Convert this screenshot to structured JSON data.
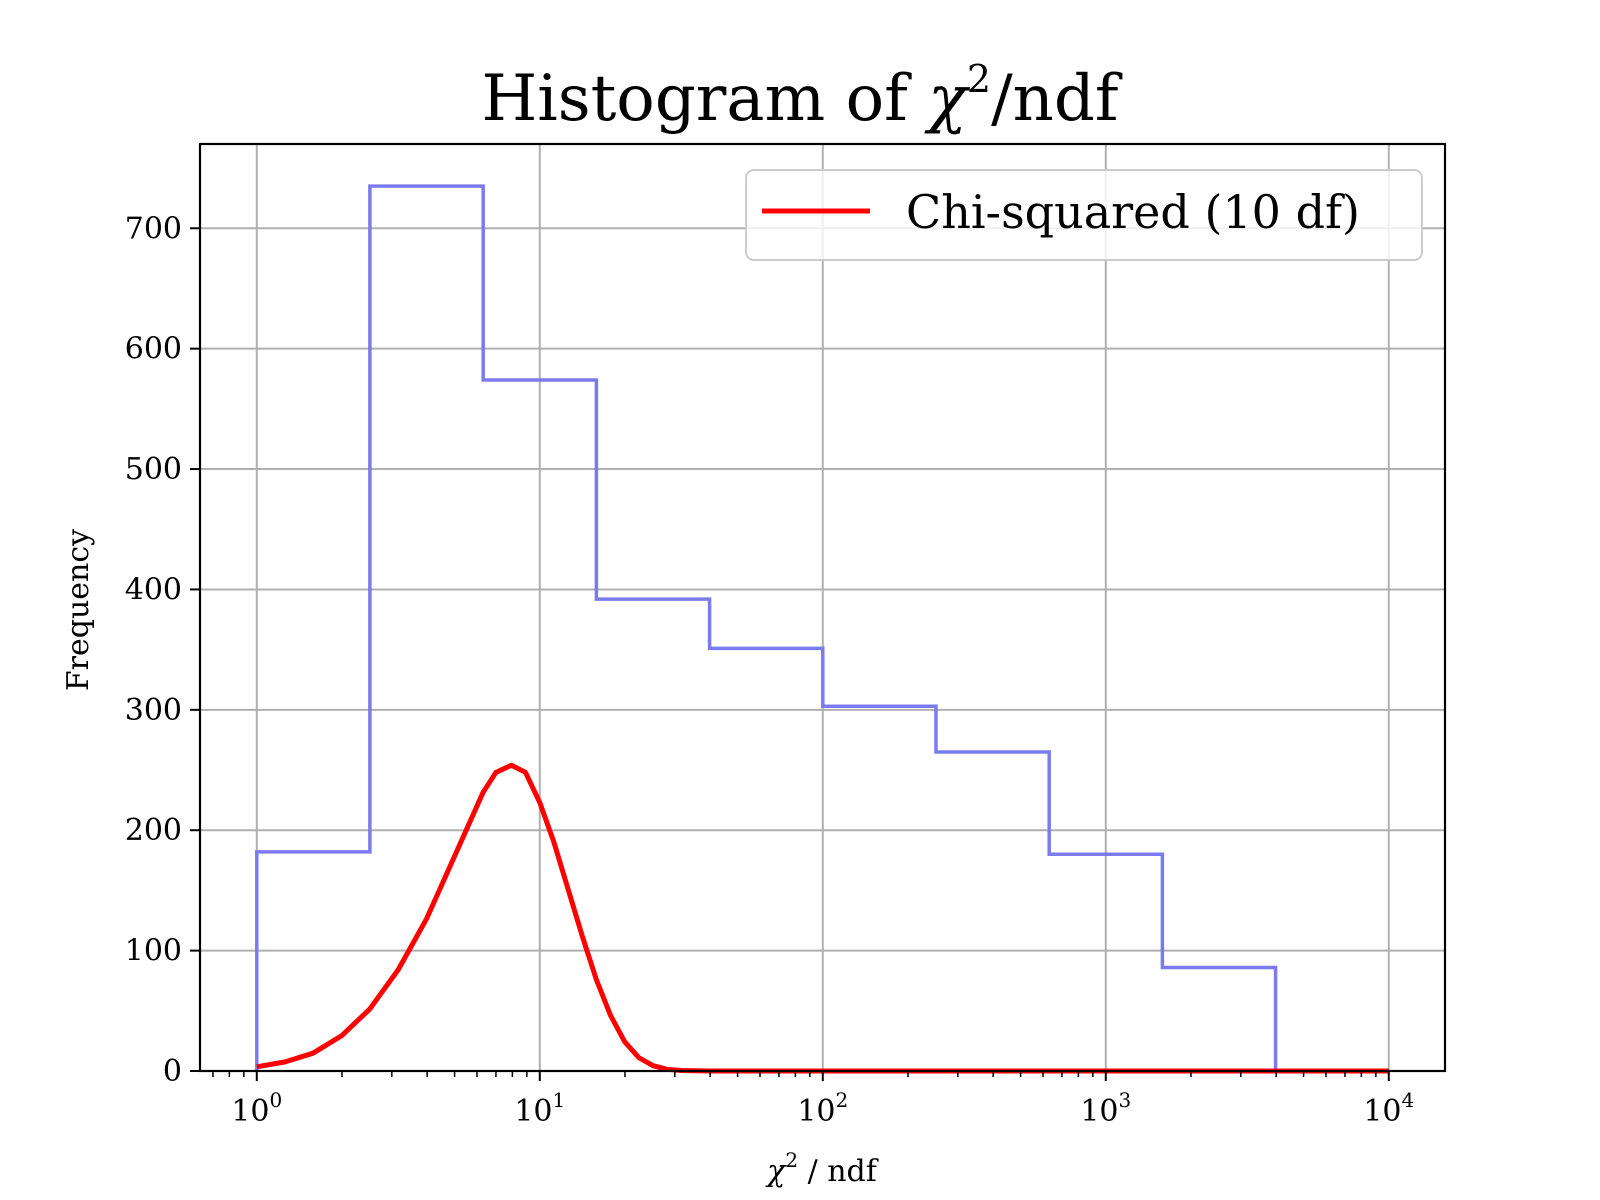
{
  "chart_data": {
    "type": "bar",
    "title_main": "Histogram of ",
    "title_symbol": "χ",
    "title_power": "2",
    "title_tail": "/ndf",
    "xlabel_symbol": "χ",
    "xlabel_power": "2",
    "xlabel_tail": " / ndf",
    "ylabel": "Frequency",
    "x_scale": "log",
    "xlim": [
      0.63,
      15800
    ],
    "ylim": [
      0,
      770
    ],
    "grid": true,
    "legend_position": "top-right",
    "x_ticks": [
      {
        "value": 1,
        "base": "10",
        "exp": "0"
      },
      {
        "value": 10,
        "base": "10",
        "exp": "1"
      },
      {
        "value": 100,
        "base": "10",
        "exp": "2"
      },
      {
        "value": 1000,
        "base": "10",
        "exp": "3"
      },
      {
        "value": 10000,
        "base": "10",
        "exp": "4"
      }
    ],
    "y_ticks": [
      {
        "value": 0,
        "label": "0"
      },
      {
        "value": 100,
        "label": "100"
      },
      {
        "value": 200,
        "label": "200"
      },
      {
        "value": 300,
        "label": "300"
      },
      {
        "value": 400,
        "label": "400"
      },
      {
        "value": 500,
        "label": "500"
      },
      {
        "value": 600,
        "label": "600"
      },
      {
        "value": 700,
        "label": "700"
      }
    ],
    "histogram": {
      "color": "#7b7bef",
      "style": "step",
      "bin_edges": [
        1.0,
        2.51,
        6.31,
        15.85,
        39.81,
        100.0,
        251.2,
        631.0,
        1585.0,
        3981.0
      ],
      "counts": [
        182,
        735,
        574,
        392,
        351,
        303,
        265,
        180,
        86
      ]
    },
    "series": [
      {
        "name": "Chi-squared (10 df)",
        "color": "#ff0000",
        "type": "line",
        "x": [
          1.0,
          1.26,
          1.58,
          2.0,
          2.51,
          3.16,
          3.98,
          5.01,
          6.31,
          7.0,
          7.94,
          8.9,
          10.0,
          11.22,
          12.59,
          14.13,
          15.85,
          17.78,
          19.95,
          22.39,
          25.12,
          28.18,
          31.62,
          39.81,
          50.12,
          100,
          1000,
          10000
        ],
        "y": [
          3.5,
          7.6,
          14.8,
          29.5,
          51.6,
          84.1,
          126.4,
          178.9,
          231.6,
          248.0,
          254.0,
          248.1,
          223.0,
          190.0,
          151.0,
          112.0,
          75.8,
          46.2,
          24.3,
          11.1,
          4.4,
          1.4,
          0.4,
          0.05,
          0.0,
          0.0,
          0.0,
          0.0
        ]
      }
    ]
  }
}
